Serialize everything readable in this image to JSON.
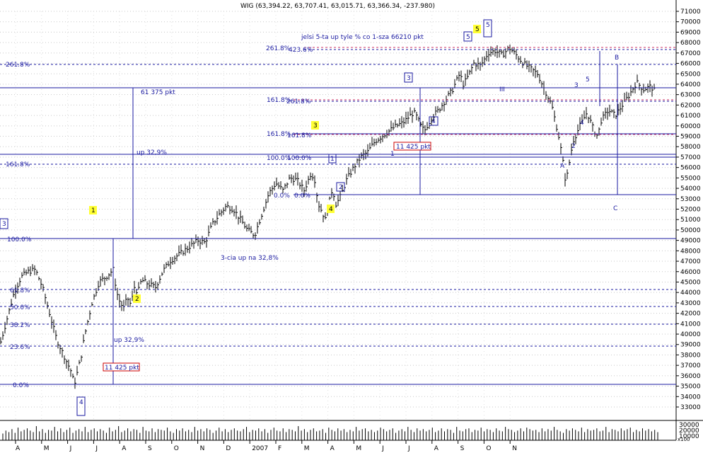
{
  "chart_data": {
    "type": "bar",
    "title": "WIG (63,394.22, 63,707.41, 63,015.71, 63,366.34, -237.980)",
    "y_ticks": [
      "71000",
      "70000",
      "69000",
      "68000",
      "67000",
      "66000",
      "65000",
      "64000",
      "63000",
      "62000",
      "61000",
      "60000",
      "59000",
      "58000",
      "57000",
      "56000",
      "55000",
      "54000",
      "53000",
      "52000",
      "51000",
      "50000",
      "49000",
      "48000",
      "47000",
      "46000",
      "45000",
      "44000",
      "43000",
      "42000",
      "41000",
      "40000",
      "39000",
      "38000",
      "37000",
      "36000",
      "35000",
      "34000",
      "33000"
    ],
    "volume_ticks": [
      "30000",
      "20000",
      "10000"
    ],
    "volume_unit": "x100",
    "x_ticks": [
      "A",
      "M",
      "J",
      "J",
      "A",
      "S",
      "O",
      "N",
      "D",
      "2007",
      "F",
      "M",
      "A",
      "M",
      "J",
      "J",
      "A",
      "S",
      "O",
      "N"
    ],
    "ylim": [
      32500,
      71700
    ],
    "price": [
      [
        0,
        39000
      ],
      [
        10,
        41500
      ],
      [
        20,
        44000
      ],
      [
        30,
        45500
      ],
      [
        40,
        46000
      ],
      [
        50,
        46200
      ],
      [
        60,
        44500
      ],
      [
        70,
        42000
      ],
      [
        80,
        39500
      ],
      [
        90,
        38000
      ],
      [
        100,
        36500
      ],
      [
        105,
        35200
      ],
      [
        110,
        36500
      ],
      [
        115,
        38000
      ],
      [
        120,
        40000
      ],
      [
        130,
        43000
      ],
      [
        140,
        45000
      ],
      [
        150,
        45500
      ],
      [
        160,
        46200
      ],
      [
        165,
        44000
      ],
      [
        170,
        43000
      ],
      [
        175,
        42500
      ],
      [
        180,
        43500
      ],
      [
        185,
        42800
      ],
      [
        190,
        44500
      ],
      [
        195,
        44000
      ],
      [
        200,
        45200
      ],
      [
        210,
        44800
      ],
      [
        220,
        44500
      ],
      [
        230,
        46000
      ],
      [
        240,
        47000
      ],
      [
        250,
        47500
      ],
      [
        260,
        48000
      ],
      [
        270,
        48500
      ],
      [
        280,
        49000
      ],
      [
        290,
        48800
      ],
      [
        300,
        50500
      ],
      [
        310,
        51500
      ],
      [
        320,
        52300
      ],
      [
        330,
        52000
      ],
      [
        340,
        51000
      ],
      [
        350,
        50000
      ],
      [
        360,
        49500
      ],
      [
        370,
        51500
      ],
      [
        380,
        53500
      ],
      [
        390,
        54500
      ],
      [
        400,
        53800
      ],
      [
        410,
        55000
      ],
      [
        420,
        54800
      ],
      [
        430,
        53800
      ],
      [
        440,
        55500
      ],
      [
        445,
        54800
      ],
      [
        450,
        52500
      ],
      [
        455,
        51800
      ],
      [
        460,
        51000
      ],
      [
        465,
        52500
      ],
      [
        470,
        54000
      ],
      [
        475,
        52500
      ],
      [
        480,
        53000
      ],
      [
        490,
        54800
      ],
      [
        500,
        56000
      ],
      [
        510,
        57000
      ],
      [
        520,
        57500
      ],
      [
        530,
        58500
      ],
      [
        540,
        59000
      ],
      [
        550,
        59500
      ],
      [
        560,
        60000
      ],
      [
        570,
        60300
      ],
      [
        580,
        61000
      ],
      [
        585,
        61300
      ],
      [
        590,
        60800
      ],
      [
        595,
        60000
      ],
      [
        600,
        59500
      ],
      [
        610,
        60800
      ],
      [
        620,
        61500
      ],
      [
        630,
        62500
      ],
      [
        640,
        63500
      ],
      [
        650,
        65000
      ],
      [
        655,
        64000
      ],
      [
        660,
        64500
      ],
      [
        670,
        66000
      ],
      [
        680,
        65800
      ],
      [
        690,
        67000
      ],
      [
        700,
        67200
      ],
      [
        710,
        66800
      ],
      [
        720,
        67500
      ],
      [
        730,
        66800
      ],
      [
        740,
        66000
      ],
      [
        750,
        65500
      ],
      [
        760,
        65000
      ],
      [
        770,
        63500
      ],
      [
        780,
        62000
      ],
      [
        790,
        59000
      ],
      [
        795,
        57000
      ],
      [
        800,
        54500
      ],
      [
        805,
        56500
      ],
      [
        810,
        58500
      ],
      [
        820,
        60000
      ],
      [
        830,
        61300
      ],
      [
        840,
        59500
      ],
      [
        845,
        59000
      ],
      [
        850,
        60500
      ],
      [
        860,
        61500
      ],
      [
        870,
        61000
      ],
      [
        880,
        62000
      ],
      [
        890,
        63000
      ],
      [
        900,
        64200
      ],
      [
        910,
        63500
      ],
      [
        920,
        63800
      ],
      [
        925,
        63400
      ]
    ],
    "volume": [
      9,
      13,
      11,
      15,
      10,
      17,
      12,
      14,
      16,
      13,
      11,
      19,
      12,
      15,
      10,
      14,
      13,
      18,
      12,
      16,
      11,
      14,
      17,
      10,
      13,
      15,
      12,
      18,
      11,
      14,
      16,
      12,
      15,
      13,
      10,
      17,
      12,
      14,
      19,
      11,
      13,
      16,
      12,
      15,
      14,
      10,
      18,
      13,
      12,
      16,
      11,
      15,
      14,
      13,
      17,
      12,
      10,
      15,
      13,
      16,
      12,
      14,
      11,
      18,
      13,
      15,
      12,
      16,
      14,
      10,
      13,
      17,
      12,
      15,
      11,
      14,
      16,
      13,
      12,
      15,
      18,
      11,
      14,
      13,
      16,
      12,
      15,
      10,
      14,
      17,
      13,
      12,
      16,
      11,
      15,
      14,
      12,
      19,
      13,
      15,
      11,
      14,
      16,
      12,
      13,
      15,
      10,
      17,
      14,
      12,
      16,
      13,
      15,
      11,
      14,
      12,
      18,
      13,
      15,
      16,
      12,
      14,
      11,
      13,
      17,
      15,
      12,
      14,
      16,
      10,
      13,
      15,
      12,
      18,
      14,
      11,
      16,
      13,
      15,
      12,
      14,
      17,
      11,
      13,
      16,
      12,
      15,
      14,
      10,
      18,
      13,
      12,
      15,
      16,
      11,
      14,
      13,
      17,
      12,
      15,
      14,
      11,
      16,
      13,
      12,
      18,
      15,
      14,
      11,
      13,
      16,
      12,
      17,
      15,
      13,
      14,
      11,
      16,
      12,
      15,
      13,
      18,
      14,
      12,
      10,
      15,
      13,
      16,
      14,
      12,
      17,
      11,
      15,
      13,
      14,
      16,
      12,
      13,
      18,
      11,
      15,
      14,
      12,
      16,
      13,
      15,
      17,
      11,
      14,
      12,
      16,
      13,
      15,
      12,
      14,
      11
    ]
  },
  "annotations": {
    "fib_left": [
      "100.0%",
      "61.8%",
      "50.0%",
      "38.2%",
      "23.6%",
      "0.0%"
    ],
    "fib_mid": [
      "161.8%",
      "100.0%",
      "0.0%"
    ],
    "fib_mid2": [
      "161.8%",
      "100.0%",
      "0.0%"
    ],
    "fib_top_a": "261.8%",
    "fib_top_b": "423.6%",
    "fib_right": "261.8%",
    "fib_right2": "161.8%",
    "level_261_left": "261.8%",
    "level_161_left": "161.8%",
    "pts_61375": "61 375 pkt",
    "up_329_top": "up 32,9%",
    "up_329_bottom": "up 32,9%",
    "pts_11425_left": "11 425 pkt",
    "pts_11425_mid": "11 425 pkt",
    "third_wave_note": "3-cia up na 32,8%",
    "fifth_wave_note": "jelsi 5-ta up tyle % co 1-sza 66210 pkt",
    "wave_y1": "1",
    "wave_y2": "2",
    "wave_y3": "3",
    "wave_y4": "4",
    "wave_y5": "5",
    "box_3_left": "3",
    "box_4_left": "4",
    "box_1_mid": "1",
    "box_2_mid": "2",
    "box_3_mid": "3",
    "box_4_mid": "4",
    "box_5_a": "5",
    "box_5_b": "5",
    "roman_3": "III",
    "plain_1": "1",
    "wave_A": "A",
    "wave_B": "B",
    "wave_C": "C",
    "small_2": "2",
    "small_3": "3",
    "small_4": "4",
    "small_5": "5"
  }
}
